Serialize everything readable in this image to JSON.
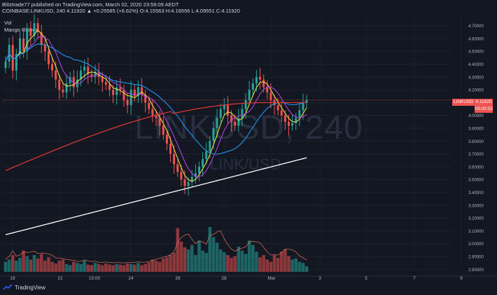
{
  "header": {
    "line1": "Blitztrade77 published on TradingView.com, March 02, 2020 23:59:09 AEDT",
    "line2_symbol": "COINBASE:LINKUSD, 240",
    "line2_ohlc": "4.11920 ▲ +0.25585 (+6.62%) O:4.15563 H:4.16556 L:4.09551 C:4.11920"
  },
  "indicators": [
    "Vol",
    "Mango Ribbon"
  ],
  "watermark": {
    "symbol": "LINKUSD, 240",
    "pair": "LINK/USD"
  },
  "price_labels": {
    "symbol": "LINKUSD",
    "price": "4.11920",
    "countdown": "03:00:53"
  },
  "branding": "TradingView",
  "colors": {
    "background": "#131722",
    "up": "#26a69a",
    "down": "#ef5350",
    "ma_yellow": "#e8d845",
    "ma_purple": "#b040d8",
    "ma_blue": "#2196f3",
    "ma_red": "#e53935",
    "ma_white": "#ffffff"
  },
  "chart_data": {
    "type": "candlestick",
    "title": "",
    "y_ticks": [
      "4.70000",
      "4.60000",
      "4.50000",
      "4.40000",
      "4.30000",
      "4.20000",
      "4.10000",
      "4.00000",
      "3.90000",
      "3.80000",
      "3.70000",
      "3.60000",
      "3.50000",
      "3.40000",
      "3.30000",
      "3.20000",
      "3.10000",
      "3.00000",
      "2.90000",
      "2.80000"
    ],
    "ylim": [
      2.78,
      4.78
    ],
    "x_ticks": [
      "19",
      "21",
      "15:00",
      "24",
      "26",
      "28",
      "Mar",
      "3",
      "5",
      "7",
      "9"
    ],
    "last_price": 4.1192,
    "candles_close": [
      4.42,
      4.55,
      4.35,
      4.48,
      4.6,
      4.5,
      4.68,
      4.62,
      4.72,
      4.65,
      4.55,
      4.5,
      4.4,
      4.35,
      4.28,
      4.2,
      4.18,
      4.25,
      4.3,
      4.22,
      4.28,
      4.35,
      4.38,
      4.32,
      4.3,
      4.34,
      4.3,
      4.26,
      4.24,
      4.2,
      4.16,
      4.22,
      4.2,
      4.12,
      4.08,
      4.2,
      4.15,
      4.22,
      4.16,
      4.1,
      4.05,
      4.0,
      3.98,
      3.92,
      3.85,
      3.78,
      3.7,
      3.62,
      3.56,
      3.5,
      3.45,
      3.48,
      3.52,
      3.55,
      3.6,
      3.66,
      3.72,
      3.8,
      3.9,
      3.98,
      4.05,
      4.08,
      4.0,
      3.95,
      3.92,
      3.98,
      4.05,
      4.12,
      4.2,
      4.25,
      4.3,
      4.28,
      4.22,
      4.18,
      4.12,
      4.08,
      4.04,
      4.0,
      3.95,
      3.92,
      3.94,
      3.98,
      4.04,
      4.1,
      4.12
    ],
    "volume_heights": [
      0.18,
      0.22,
      0.3,
      0.2,
      0.25,
      0.38,
      0.28,
      0.22,
      0.3,
      0.24,
      0.32,
      0.2,
      0.26,
      0.18,
      0.15,
      0.2,
      0.22,
      0.14,
      0.12,
      0.18,
      0.16,
      0.14,
      0.2,
      0.13,
      0.12,
      0.16,
      0.14,
      0.12,
      0.15,
      0.13,
      0.12,
      0.14,
      0.13,
      0.12,
      0.15,
      0.14,
      0.13,
      0.16,
      0.12,
      0.14,
      0.17,
      0.22,
      0.2,
      0.18,
      0.24,
      0.26,
      0.3,
      0.34,
      0.78,
      0.54,
      0.44,
      0.4,
      0.48,
      0.3,
      0.56,
      0.38,
      0.34,
      0.8,
      0.62,
      0.52,
      0.4,
      0.35,
      0.3,
      0.25,
      0.28,
      0.45,
      0.38,
      0.32,
      0.56,
      0.48,
      0.36,
      0.26,
      0.3,
      0.22,
      0.18,
      0.3,
      0.25,
      0.36,
      0.4,
      0.28,
      0.22,
      0.24,
      0.18,
      0.16,
      0.1
    ],
    "ma_series": [
      {
        "name": "",
        "color": "#e8d845"
      },
      {
        "name": "",
        "color": "#b040d8"
      },
      {
        "name": "",
        "color": "#2196f3"
      },
      {
        "name": "",
        "color": "#e53935"
      },
      {
        "name": "",
        "color": "#ffffff"
      }
    ]
  }
}
